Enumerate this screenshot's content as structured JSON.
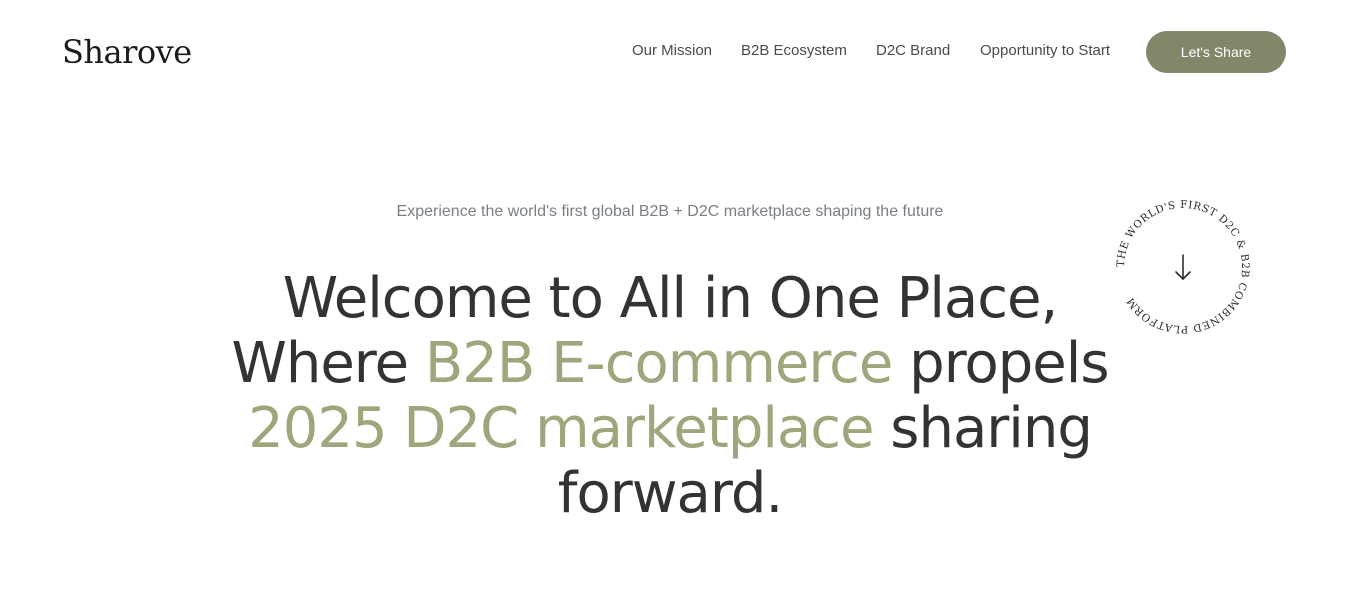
{
  "brand": {
    "logo_text": "Sharove"
  },
  "nav": {
    "items": [
      {
        "label": "Our Mission"
      },
      {
        "label": "B2B Ecosystem"
      },
      {
        "label": "D2C Brand"
      },
      {
        "label": "Opportunity to Start"
      }
    ],
    "cta_label": "Let's Share"
  },
  "hero": {
    "tagline": "Experience the world's first global B2B + D2C marketplace shaping the future",
    "headline": {
      "line1": "Welcome to All in One Place,",
      "line2_pre": "Where ",
      "line2_highlight": "B2B E-commerce",
      "line2_post": " propels",
      "line3_highlight": "2025 D2C marketplace",
      "line3_post": " sharing",
      "line4": "forward."
    }
  },
  "badge": {
    "circular_text": "THE WORLD'S FIRST D2C & B2B COMBINED PLATFORM",
    "icon": "arrow-down-icon"
  },
  "colors": {
    "accent": "#83876a",
    "highlight_text": "#a0a57b",
    "heading_text": "#333333",
    "tagline_text": "#7a7f85",
    "background": "#ffffff"
  }
}
